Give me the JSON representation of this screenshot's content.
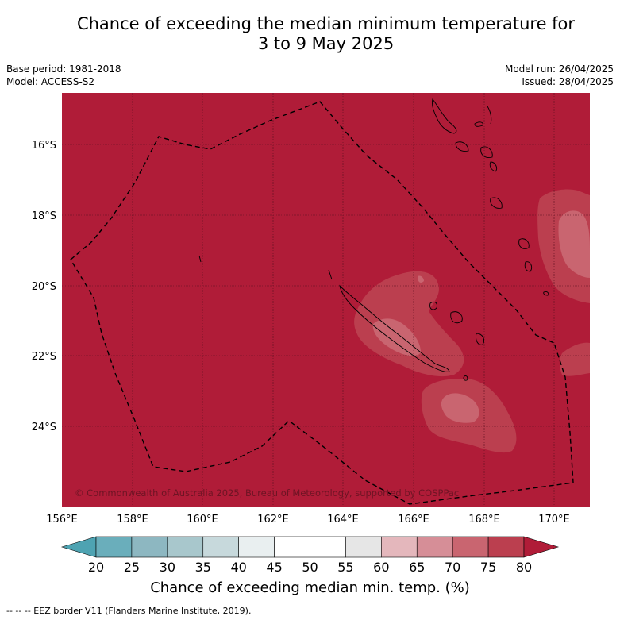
{
  "title_line1": "Chance of exceeding the median minimum temperature for",
  "title_line2": "3 to 9 May 2025",
  "base_period": "Base period: 1981-2018",
  "model": "Model: ACCESS-S2",
  "model_run": "Model run: 26/04/2025",
  "issued": "Issued: 28/04/2025",
  "copyright": "© Commonwealth of Australia 2025, Bureau of Meteorology, supported by COSPPac",
  "lat_labels": [
    "16°S",
    "18°S",
    "20°S",
    "22°S",
    "24°S"
  ],
  "lon_labels": [
    "156°E",
    "158°E",
    "160°E",
    "162°E",
    "164°E",
    "166°E",
    "168°E",
    "170°E"
  ],
  "colorbar": {
    "title": "Chance of exceeding median min. temp. (%)",
    "ticks": [
      "20",
      "25",
      "30",
      "35",
      "40",
      "45",
      "50",
      "55",
      "60",
      "65",
      "70",
      "75",
      "80"
    ],
    "colors": [
      "#6aaebb",
      "#8db7c1",
      "#a8c7cc",
      "#c7d9dc",
      "#e9eff0",
      "#ffffff",
      "#ffffff",
      "#e6e6e6",
      "#e4b7bc",
      "#d68e97",
      "#c96570",
      "#bb3f4f"
    ],
    "low_color": "#4ea3b2",
    "high_color": "#b01c38"
  },
  "map_colors": {
    "base": "#b01c38",
    "band75": "#bb3f4f",
    "band70": "#c96570"
  },
  "footnote": "--  --  -- EEZ border V11 (Flanders Marine Institute, 2019)."
}
